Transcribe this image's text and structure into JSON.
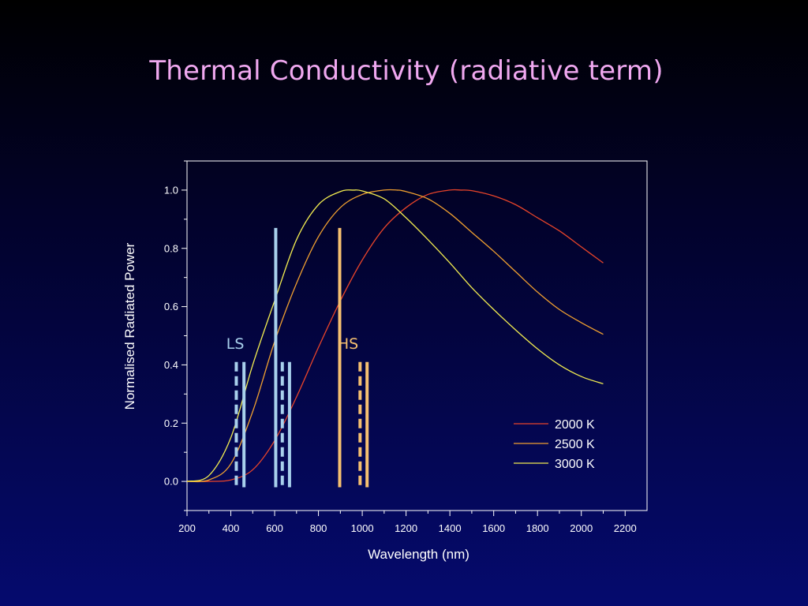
{
  "slide": {
    "title": "Thermal Conductivity (radiative term)"
  },
  "colors": {
    "axis": "#ffffff",
    "text": "#ffffff",
    "title": "#f0a8f0",
    "ls_lines": "#a8d0ec",
    "hs_lines": "#f6c070",
    "ls_label": "#a8d0ec",
    "hs_label": "#f6c070"
  },
  "chart_data": {
    "type": "line",
    "title": "",
    "xlabel": "Wavelength (nm)",
    "ylabel": "Normalised Radiated Power",
    "xlim": [
      200,
      2300
    ],
    "ylim": [
      -0.1,
      1.1
    ],
    "xticks": [
      200,
      400,
      600,
      800,
      1000,
      1200,
      1400,
      1600,
      1800,
      2000,
      2200
    ],
    "yticks": [
      0.0,
      0.2,
      0.4,
      0.6,
      0.8,
      1.0
    ],
    "ytick_labels": [
      "0.0",
      "0.2",
      "0.4",
      "0.6",
      "0.8",
      "1.0"
    ],
    "grid": false,
    "legend_position": "lower-right",
    "series": [
      {
        "name": "2000 K",
        "color": "#e8442a",
        "x": [
          200,
          300,
          400,
          500,
          600,
          700,
          800,
          900,
          1000,
          1100,
          1200,
          1300,
          1400,
          1450,
          1500,
          1600,
          1700,
          1800,
          1900,
          2000,
          2100
        ],
        "y": [
          0.0,
          0.0,
          0.005,
          0.04,
          0.14,
          0.29,
          0.46,
          0.62,
          0.76,
          0.87,
          0.94,
          0.985,
          1.0,
          1.0,
          0.998,
          0.98,
          0.95,
          0.905,
          0.86,
          0.805,
          0.75
        ]
      },
      {
        "name": "2500 K",
        "color": "#f0a030",
        "x": [
          200,
          300,
          400,
          500,
          600,
          700,
          800,
          900,
          1000,
          1100,
          1160,
          1200,
          1300,
          1400,
          1500,
          1600,
          1700,
          1800,
          1900,
          2000,
          2100
        ],
        "y": [
          0.0,
          0.005,
          0.06,
          0.24,
          0.48,
          0.68,
          0.84,
          0.94,
          0.985,
          1.0,
          1.0,
          0.995,
          0.97,
          0.92,
          0.855,
          0.79,
          0.72,
          0.65,
          0.59,
          0.545,
          0.505
        ]
      },
      {
        "name": "3000 K",
        "color": "#f2ec50",
        "x": [
          200,
          300,
          400,
          500,
          600,
          700,
          800,
          900,
          960,
          1000,
          1100,
          1200,
          1300,
          1400,
          1500,
          1600,
          1700,
          1800,
          1900,
          2000,
          2100
        ],
        "y": [
          0.0,
          0.02,
          0.15,
          0.4,
          0.62,
          0.83,
          0.95,
          0.995,
          1.0,
          0.997,
          0.97,
          0.905,
          0.83,
          0.75,
          0.665,
          0.59,
          0.52,
          0.455,
          0.4,
          0.36,
          0.335
        ]
      }
    ],
    "annotations": [
      {
        "label": "LS",
        "label_x": 420,
        "label_y": 0.455,
        "color_key": "ls_label"
      },
      {
        "label": "HS",
        "label_x": 935,
        "label_y": 0.455,
        "color_key": "hs_label"
      }
    ],
    "marker_lines": [
      {
        "x": 425,
        "y_top": 0.41,
        "dashed": true,
        "color_key": "ls_lines"
      },
      {
        "x": 460,
        "y_top": 0.41,
        "dashed": false,
        "color_key": "ls_lines"
      },
      {
        "x": 605,
        "y_top": 0.87,
        "dashed": false,
        "color_key": "ls_lines"
      },
      {
        "x": 635,
        "y_top": 0.41,
        "dashed": true,
        "color_key": "ls_lines"
      },
      {
        "x": 668,
        "y_top": 0.41,
        "dashed": false,
        "color_key": "ls_lines"
      },
      {
        "x": 897,
        "y_top": 0.87,
        "dashed": false,
        "color_key": "hs_lines"
      },
      {
        "x": 990,
        "y_top": 0.41,
        "dashed": true,
        "color_key": "hs_lines"
      },
      {
        "x": 1022,
        "y_top": 0.41,
        "dashed": false,
        "color_key": "hs_lines"
      }
    ]
  }
}
